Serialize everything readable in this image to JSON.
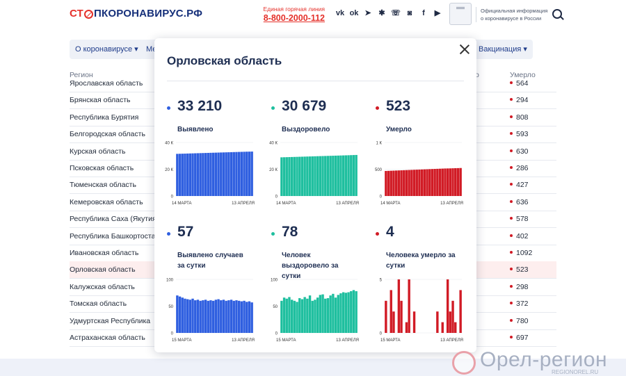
{
  "header": {
    "logo_part1": "СТ",
    "logo_part2": "ПКОРОНАВИРУС.РФ",
    "hotline_caption": "Единая горячая линия",
    "hotline_number": "8-800-2000-112",
    "gov_info": "Официальная информация о коронавирусе в России",
    "social_icons": [
      "vk-icon",
      "odnoklassniki-icon",
      "telegram-icon",
      "rutube-icon",
      "viber-icon",
      "instagram-icon",
      "facebook-icon",
      "youtube-icon"
    ]
  },
  "nav": {
    "about": "О коронавирусе ▾",
    "measures_partial": "Ме",
    "vaccination": "Вакцинация ▾"
  },
  "table": {
    "col_region": "Регион",
    "col_partial": "о",
    "col_died": "Умерло",
    "rows": [
      {
        "name": "Ярославская область",
        "died": "564"
      },
      {
        "name": "Брянская область",
        "died": "294"
      },
      {
        "name": "Республика Бурятия",
        "died": "808"
      },
      {
        "name": "Белгородская область",
        "died": "593"
      },
      {
        "name": "Курская область",
        "died": "630"
      },
      {
        "name": "Псковская область",
        "died": "286"
      },
      {
        "name": "Тюменская область",
        "died": "427"
      },
      {
        "name": "Кемеровская область",
        "died": "636"
      },
      {
        "name": "Республика Саха (Якутия)",
        "died": "578"
      },
      {
        "name": "Республика Башкортостан",
        "died": "402"
      },
      {
        "name": "Ивановская область",
        "died": "1092"
      },
      {
        "name": "Орловская область",
        "died": "523"
      },
      {
        "name": "Калужская область",
        "died": "298"
      },
      {
        "name": "Томская область",
        "died": "372"
      },
      {
        "name": "Удмуртская Республика",
        "died": "780"
      },
      {
        "name": "Астраханская область",
        "died": "697"
      }
    ]
  },
  "modal": {
    "title": "Орловская область",
    "stats": [
      {
        "value": "33 210",
        "label": "Выявлено",
        "color": "#2f5fe0"
      },
      {
        "value": "30 679",
        "label": "Выздоровело",
        "color": "#1fbf9f"
      },
      {
        "value": "523",
        "label": "Умерло",
        "color": "#d11b25"
      },
      {
        "value": "57",
        "label": "Выявлено случаев за сутки",
        "color": "#2f5fe0"
      },
      {
        "value": "78",
        "label": "Человек выздоровело за сутки",
        "color": "#1fbf9f"
      },
      {
        "value": "4",
        "label": "Человека умерло за сутки",
        "color": "#d11b25"
      }
    ]
  },
  "watermark": {
    "text": "Орел-регион",
    "url": "REGIONOREL.RU"
  },
  "chart_data": [
    {
      "type": "bar",
      "name": "cumulative-detected",
      "color": "#2f5fe0",
      "x_start": "14 МАРТА",
      "x_end": "13 АПРЕЛЯ",
      "y_ticks": [
        "0",
        "20 К",
        "40 К"
      ],
      "ylim": [
        0,
        40000
      ],
      "values": [
        31500,
        31560,
        31620,
        31680,
        31740,
        31800,
        31860,
        31920,
        31980,
        32040,
        32100,
        32160,
        32220,
        32280,
        32340,
        32400,
        32460,
        32520,
        32580,
        32640,
        32700,
        32760,
        32820,
        32880,
        32940,
        33000,
        33060,
        33120,
        33160,
        33210
      ]
    },
    {
      "type": "bar",
      "name": "cumulative-recovered",
      "color": "#1fbf9f",
      "x_start": "14 МАРТА",
      "x_end": "13 АПРЕЛЯ",
      "y_ticks": [
        "0",
        "20 К",
        "40 К"
      ],
      "ylim": [
        0,
        40000
      ],
      "values": [
        28900,
        28960,
        29020,
        29080,
        29140,
        29200,
        29260,
        29320,
        29380,
        29440,
        29500,
        29560,
        29620,
        29680,
        29740,
        29800,
        29860,
        29920,
        29980,
        30040,
        30100,
        30160,
        30220,
        30280,
        30340,
        30400,
        30470,
        30540,
        30610,
        30679
      ]
    },
    {
      "type": "bar",
      "name": "cumulative-died",
      "color": "#d11b25",
      "x_start": "14 МАРТА",
      "x_end": "13 АПРЕЛЯ",
      "y_ticks": [
        "0",
        "500",
        "1 К"
      ],
      "ylim": [
        0,
        1000
      ],
      "values": [
        468,
        470,
        472,
        474,
        476,
        478,
        480,
        482,
        484,
        486,
        488,
        490,
        492,
        494,
        496,
        498,
        500,
        502,
        504,
        506,
        508,
        510,
        512,
        514,
        515,
        516,
        518,
        520,
        521,
        523
      ]
    },
    {
      "type": "bar",
      "name": "daily-detected",
      "color": "#2f5fe0",
      "x_start": "15 МАРТА",
      "x_end": "13 АПРЕЛЯ",
      "y_ticks": [
        "0",
        "50",
        "100"
      ],
      "ylim": [
        0,
        100
      ],
      "values": [
        70,
        68,
        66,
        64,
        63,
        62,
        64,
        61,
        62,
        60,
        61,
        62,
        60,
        61,
        60,
        62,
        63,
        61,
        62,
        60,
        61,
        62,
        60,
        61,
        60,
        59,
        60,
        58,
        59,
        57
      ]
    },
    {
      "type": "bar",
      "name": "daily-recovered",
      "color": "#1fbf9f",
      "x_start": "15 МАРТА",
      "x_end": "13 АПРЕЛЯ",
      "y_ticks": [
        "0",
        "50",
        "100"
      ],
      "ylim": [
        0,
        100
      ],
      "values": [
        60,
        66,
        64,
        67,
        62,
        60,
        58,
        65,
        63,
        67,
        64,
        70,
        60,
        62,
        66,
        71,
        72,
        64,
        65,
        70,
        73,
        66,
        71,
        74,
        76,
        75,
        76,
        78,
        80,
        78
      ]
    },
    {
      "type": "bar",
      "name": "daily-died",
      "color": "#d11b25",
      "x_start": "15 МАРТА",
      "x_end": "13 АПРЕЛЯ",
      "y_ticks": [
        "0",
        "5"
      ],
      "ylim": [
        0,
        5
      ],
      "values": [
        3,
        0,
        4,
        2,
        0,
        5,
        3,
        0,
        1,
        5,
        0,
        2,
        0,
        0,
        0,
        0,
        0,
        0,
        0,
        0,
        2,
        0,
        1,
        0,
        5,
        2,
        3,
        1,
        0,
        4
      ]
    }
  ]
}
